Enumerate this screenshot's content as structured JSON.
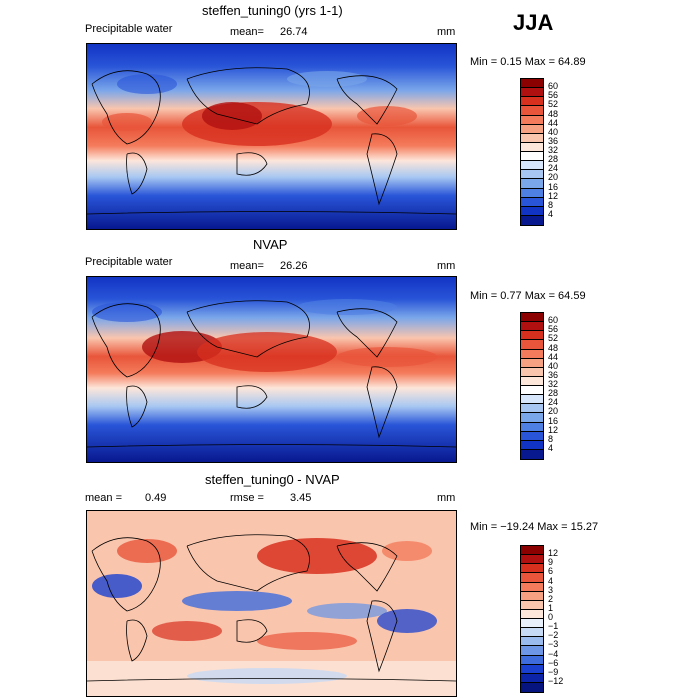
{
  "season": "JJA",
  "panels": [
    {
      "title": "steffen_tuning0 (yrs 1-1)",
      "variable": "Precipitable water",
      "mean_label": "mean=",
      "mean": "26.74",
      "units": "mm",
      "minmax": "Min =    0.15 Max =   64.89",
      "colorbar": [
        "60",
        "56",
        "52",
        "48",
        "44",
        "40",
        "36",
        "32",
        "28",
        "24",
        "20",
        "16",
        "12",
        "8",
        "4"
      ],
      "colors": [
        "#8b0000",
        "#b01010",
        "#d7301f",
        "#e8553a",
        "#f47c5c",
        "#f7a183",
        "#fac5ad",
        "#fde6da",
        "#ffffff",
        "#d7e6fa",
        "#a7c7f2",
        "#7aa6ea",
        "#4e7fe3",
        "#2955d8",
        "#1234c4",
        "#08188f"
      ]
    },
    {
      "title": "NVAP",
      "variable": "Precipitable water",
      "mean_label": "mean=",
      "mean": "26.26",
      "units": "mm",
      "minmax": "Min =    0.77 Max =   64.59",
      "colorbar": [
        "60",
        "56",
        "52",
        "48",
        "44",
        "40",
        "36",
        "32",
        "28",
        "24",
        "20",
        "16",
        "12",
        "8",
        "4"
      ],
      "colors": [
        "#8b0000",
        "#b01010",
        "#d7301f",
        "#e8553a",
        "#f47c5c",
        "#f7a183",
        "#fac5ad",
        "#fde6da",
        "#ffffff",
        "#d7e6fa",
        "#a7c7f2",
        "#7aa6ea",
        "#4e7fe3",
        "#2955d8",
        "#1234c4",
        "#08188f"
      ]
    },
    {
      "title": "steffen_tuning0 - NVAP",
      "mean_label": "mean =",
      "mean": "0.49",
      "rmse_label": "rmse =",
      "rmse": "3.45",
      "units": "mm",
      "minmax": "Min = −19.24 Max =   15.27",
      "colorbar": [
        "12",
        "9",
        "6",
        "4",
        "3",
        "2",
        "1",
        "0",
        "−1",
        "−2",
        "−3",
        "−4",
        "−6",
        "−9",
        "−12"
      ],
      "colors": [
        "#8b0000",
        "#b01010",
        "#d7301f",
        "#e8553a",
        "#f47c5c",
        "#f7a183",
        "#fac5ad",
        "#fde6da",
        "#e8f0fb",
        "#c7daf5",
        "#99bbee",
        "#6d96e6",
        "#3f6cdc",
        "#1a40cf",
        "#0c24a8",
        "#061480"
      ]
    }
  ]
}
